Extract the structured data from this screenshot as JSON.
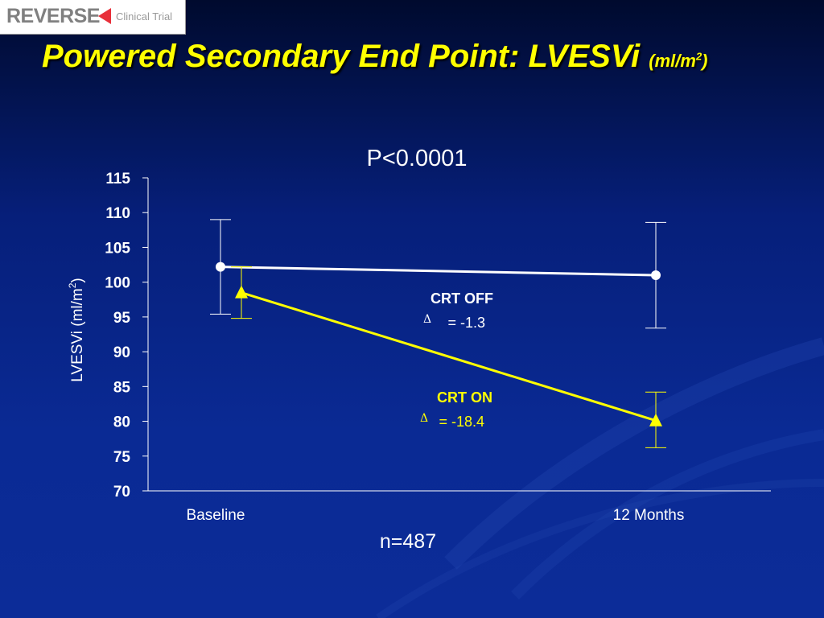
{
  "logo": {
    "word": "REVERSE",
    "subtitle": "Clinical Trial",
    "word_color": "#808080",
    "arrow_color": "#e8303a"
  },
  "slide": {
    "title_main": "Powered Secondary End Point: LVESVi",
    "title_unit": "(ml/m",
    "title_unit_sup": "2",
    "title_unit_close": ")",
    "title_color": "#ffff00"
  },
  "chart_data": {
    "type": "line",
    "title": "P<0.0001",
    "footnote": "n=487",
    "ylabel": "LVESVi (ml/m",
    "ylabel_sup": "2",
    "ylabel_close": ")",
    "xlabel": "",
    "categories": [
      "Baseline",
      "12 Months"
    ],
    "ylim": [
      70,
      115
    ],
    "yticks": [
      70,
      75,
      80,
      85,
      90,
      95,
      100,
      105,
      110,
      115
    ],
    "grid": false,
    "series": [
      {
        "name": "CRT OFF",
        "color": "#ffffff",
        "marker": "circle",
        "values": [
          102.2,
          101.0
        ],
        "error_low": [
          95.4,
          93.4
        ],
        "error_high": [
          109.0,
          108.6
        ],
        "annotation": {
          "label": "CRT OFF",
          "delta_symbol": "Δ",
          "delta_text": "= -1.3",
          "color": "#ffffff"
        }
      },
      {
        "name": "CRT ON",
        "color": "#ffff00",
        "marker": "triangle",
        "values": [
          98.5,
          80.1
        ],
        "error_low": [
          94.8,
          76.2
        ],
        "error_high": [
          102.2,
          84.2
        ],
        "annotation": {
          "label": "CRT ON",
          "delta_symbol": "Δ",
          "delta_text": "= -18.4",
          "color": "#ffff00"
        }
      }
    ]
  }
}
